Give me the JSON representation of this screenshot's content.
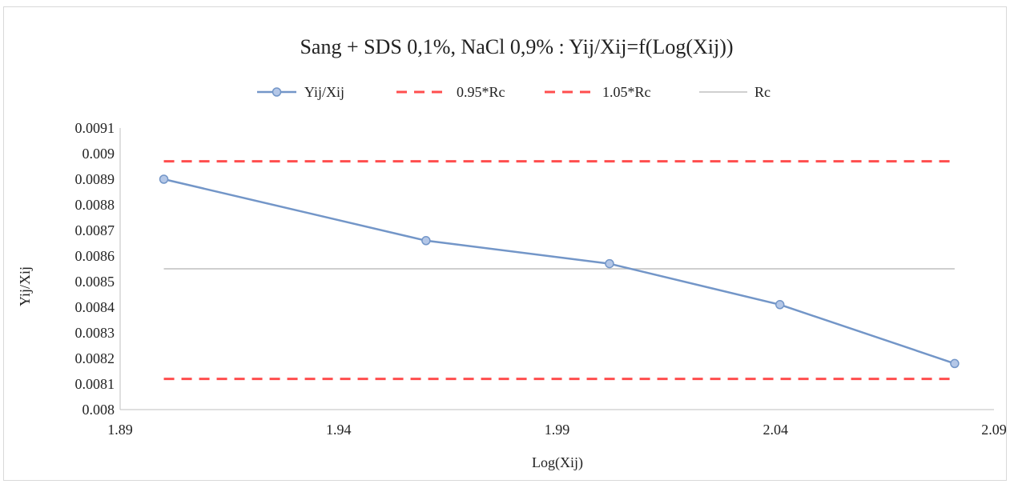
{
  "chart_data": {
    "type": "line",
    "title": "Sang + SDS 0,1%, NaCl 0,9% : Yij/Xij=f(Log(Xij))",
    "xlabel": "Log(Xij)",
    "ylabel": "Yij/Xij",
    "xlim": [
      1.89,
      2.09
    ],
    "ylim": [
      0.008,
      0.0091
    ],
    "x_ticks": [
      "1.89",
      "1.94",
      "1.99",
      "2.04",
      "2.09"
    ],
    "x_tick_values": [
      1.89,
      1.94,
      1.99,
      2.04,
      2.09
    ],
    "y_ticks": [
      "0.008",
      "0.0081",
      "0.0082",
      "0.0083",
      "0.0084",
      "0.0085",
      "0.0086",
      "0.0087",
      "0.0088",
      "0.0089",
      "0.009",
      "0.0091"
    ],
    "y_tick_values": [
      0.008,
      0.0081,
      0.0082,
      0.0083,
      0.0084,
      0.0085,
      0.0086,
      0.0087,
      0.0088,
      0.0089,
      0.009,
      0.0091
    ],
    "legend_position": "top",
    "grid": false,
    "series": [
      {
        "name": "Yij/Xij",
        "style": "solid-markers",
        "color": "#7396c8",
        "marker_fill": "#b4c7e7",
        "x": [
          1.9,
          1.96,
          2.002,
          2.041,
          2.081
        ],
        "y": [
          0.0089,
          0.00866,
          0.00857,
          0.00841,
          0.00818
        ]
      },
      {
        "name": "0.95*Rc",
        "style": "dashed",
        "color": "#ff4d4d",
        "x": [
          1.9,
          2.081
        ],
        "y": [
          0.00812,
          0.00812
        ]
      },
      {
        "name": "1.05*Rc",
        "style": "dashed",
        "color": "#ff4d4d",
        "x": [
          1.9,
          2.081
        ],
        "y": [
          0.00897,
          0.00897
        ]
      },
      {
        "name": "Rc",
        "style": "solid",
        "color": "#bfbfbf",
        "x": [
          1.9,
          2.081
        ],
        "y": [
          0.00855,
          0.00855
        ]
      }
    ]
  }
}
